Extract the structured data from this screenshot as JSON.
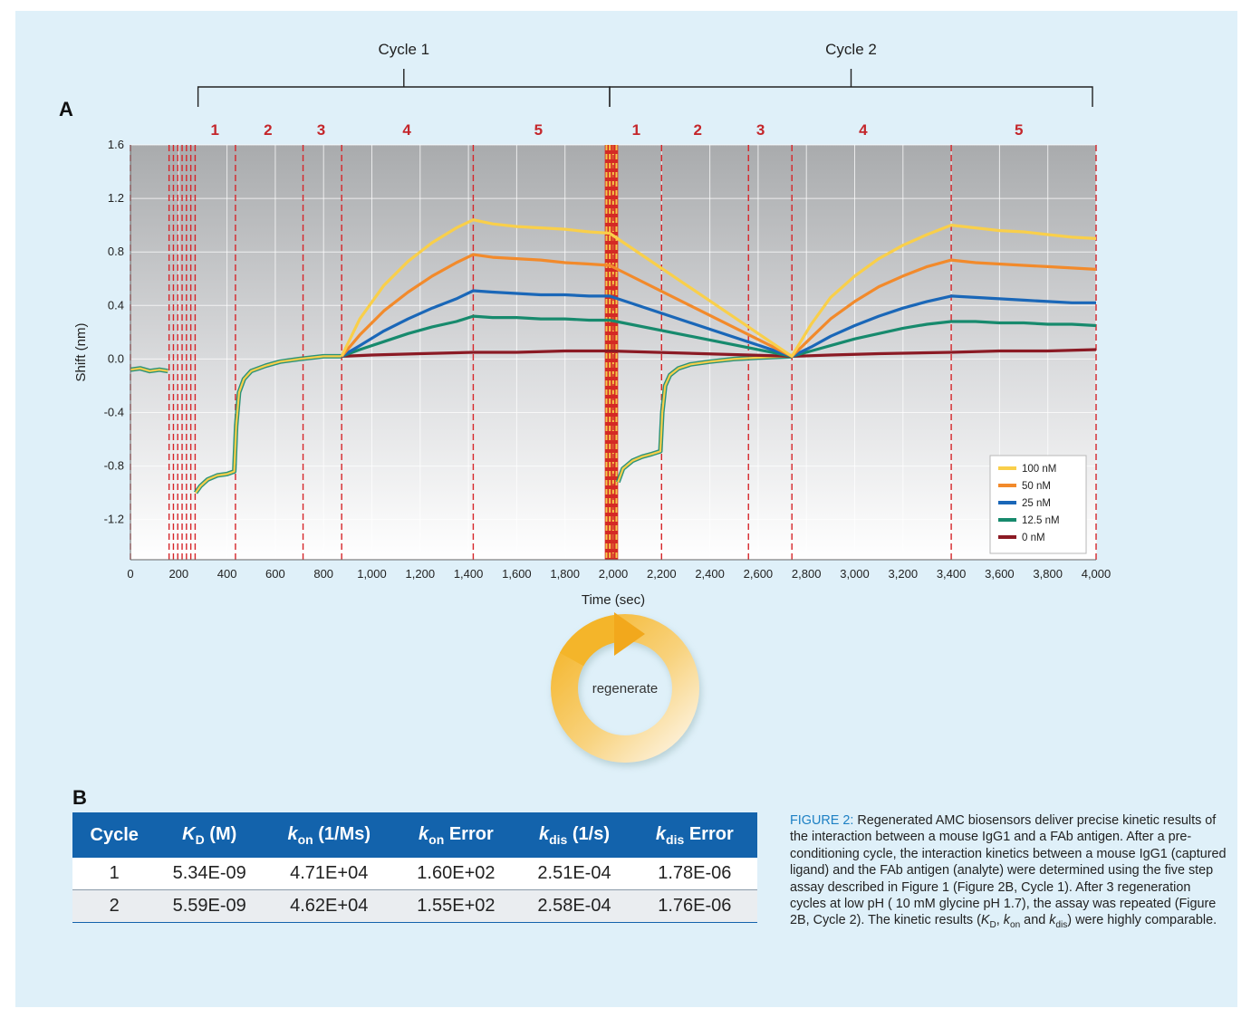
{
  "panel_labels": {
    "a": "A",
    "b": "B"
  },
  "chart_data": {
    "type": "line",
    "xlabel": "Time (sec)",
    "ylabel": "Shift (nm)",
    "xlim": [
      0,
      4000
    ],
    "ylim": [
      -1.5,
      1.6
    ],
    "x_ticks": [
      {
        "v": 0,
        "label": "0"
      },
      {
        "v": 200,
        "label": "200"
      },
      {
        "v": 400,
        "label": "400"
      },
      {
        "v": 600,
        "label": "600"
      },
      {
        "v": 800,
        "label": "800"
      },
      {
        "v": 1000,
        "label": "1,000"
      },
      {
        "v": 1200,
        "label": "1,200"
      },
      {
        "v": 1400,
        "label": "1,400"
      },
      {
        "v": 1600,
        "label": "1,600"
      },
      {
        "v": 1800,
        "label": "1,800"
      },
      {
        "v": 2000,
        "label": "2,000"
      },
      {
        "v": 2200,
        "label": "2,200"
      },
      {
        "v": 2400,
        "label": "2,400"
      },
      {
        "v": 2600,
        "label": "2,600"
      },
      {
        "v": 2800,
        "label": "2,800"
      },
      {
        "v": 3000,
        "label": "3,000"
      },
      {
        "v": 3200,
        "label": "3,200"
      },
      {
        "v": 3400,
        "label": "3,400"
      },
      {
        "v": 3600,
        "label": "3,600"
      },
      {
        "v": 3800,
        "label": "3,800"
      },
      {
        "v": 4000,
        "label": "4,000"
      }
    ],
    "y_ticks": [
      {
        "v": 1.6,
        "label": "1.6"
      },
      {
        "v": 1.2,
        "label": "1.2"
      },
      {
        "v": 0.8,
        "label": "0.8"
      },
      {
        "v": 0.4,
        "label": "0.4"
      },
      {
        "v": 0.0,
        "label": "0.0"
      },
      {
        "v": -0.4,
        "label": "-0.4"
      },
      {
        "v": -0.8,
        "label": "-0.8"
      },
      {
        "v": -1.2,
        "label": "-1.2"
      }
    ],
    "grid": true,
    "legend_position": "bottom-right",
    "cycles": [
      {
        "label": "Cycle 1",
        "start": 280,
        "end": 1985
      },
      {
        "label": "Cycle 2",
        "start": 1985,
        "end": 3985
      }
    ],
    "steps": [
      {
        "label": "1",
        "x": 350
      },
      {
        "label": "2",
        "x": 570
      },
      {
        "label": "3",
        "x": 790
      },
      {
        "label": "4",
        "x": 1145
      },
      {
        "label": "5",
        "x": 1690
      },
      {
        "label": "1",
        "x": 2095
      },
      {
        "label": "2",
        "x": 2350
      },
      {
        "label": "3",
        "x": 2610
      },
      {
        "label": "4",
        "x": 3035
      },
      {
        "label": "5",
        "x": 3680
      }
    ],
    "step_boundaries": [
      0,
      160,
      178,
      196,
      214,
      232,
      250,
      268,
      435,
      715,
      875,
      1420,
      2000,
      2200,
      2560,
      2740,
      3400,
      4000
    ],
    "regen_band": [
      1965,
      2020
    ],
    "baseline_segments": [
      {
        "x": [
          0,
          40,
          80,
          120,
          155
        ],
        "y": [
          -0.08,
          -0.07,
          -0.09,
          -0.08,
          -0.09
        ]
      },
      {
        "x": [
          270,
          290,
          320,
          360,
          400,
          430,
          438,
          450,
          470,
          500,
          560,
          620,
          700,
          800,
          875
        ],
        "y": [
          -1.0,
          -0.95,
          -0.9,
          -0.87,
          -0.86,
          -0.84,
          -0.5,
          -0.25,
          -0.15,
          -0.09,
          -0.05,
          -0.02,
          0.0,
          0.02,
          0.02
        ]
      },
      {
        "x": [
          2020,
          2040,
          2080,
          2120,
          2160,
          2195,
          2203,
          2215,
          2235,
          2270,
          2320,
          2400,
          2500,
          2600,
          2740
        ],
        "y": [
          -0.92,
          -0.82,
          -0.76,
          -0.73,
          -0.71,
          -0.69,
          -0.4,
          -0.2,
          -0.12,
          -0.07,
          -0.04,
          -0.02,
          0.0,
          0.01,
          0.02
        ]
      }
    ],
    "series": [
      {
        "name": "100 nM",
        "color": "#f9cf4a",
        "x": [
          875,
          950,
          1050,
          1150,
          1250,
          1350,
          1420,
          1500,
          1600,
          1700,
          1800,
          1900,
          1985,
          2740,
          2820,
          2900,
          3000,
          3100,
          3200,
          3300,
          3400,
          3500,
          3600,
          3700,
          3800,
          3900,
          4000
        ],
        "y": [
          0.02,
          0.3,
          0.55,
          0.73,
          0.87,
          0.98,
          1.04,
          1.01,
          0.99,
          0.98,
          0.97,
          0.95,
          0.94,
          0.02,
          0.26,
          0.46,
          0.62,
          0.75,
          0.85,
          0.93,
          1.0,
          0.98,
          0.96,
          0.95,
          0.93,
          0.91,
          0.9
        ]
      },
      {
        "name": "50 nM",
        "color": "#f28a2b",
        "x": [
          875,
          950,
          1050,
          1150,
          1250,
          1350,
          1420,
          1500,
          1600,
          1700,
          1800,
          1900,
          1985,
          2740,
          2820,
          2900,
          3000,
          3100,
          3200,
          3300,
          3400,
          3500,
          3600,
          3700,
          3800,
          3900,
          4000
        ],
        "y": [
          0.02,
          0.18,
          0.36,
          0.5,
          0.62,
          0.72,
          0.78,
          0.76,
          0.75,
          0.74,
          0.72,
          0.71,
          0.7,
          0.02,
          0.16,
          0.3,
          0.43,
          0.54,
          0.62,
          0.69,
          0.74,
          0.72,
          0.71,
          0.7,
          0.69,
          0.68,
          0.67
        ]
      },
      {
        "name": "25 nM",
        "color": "#1a67b8",
        "x": [
          875,
          950,
          1050,
          1150,
          1250,
          1350,
          1420,
          1500,
          1600,
          1700,
          1800,
          1900,
          1985,
          2740,
          2820,
          2900,
          3000,
          3100,
          3200,
          3300,
          3400,
          3500,
          3600,
          3700,
          3800,
          3900,
          4000
        ],
        "y": [
          0.02,
          0.1,
          0.21,
          0.3,
          0.38,
          0.45,
          0.51,
          0.5,
          0.49,
          0.48,
          0.48,
          0.47,
          0.47,
          0.02,
          0.09,
          0.17,
          0.25,
          0.32,
          0.38,
          0.43,
          0.47,
          0.46,
          0.45,
          0.44,
          0.43,
          0.42,
          0.42
        ]
      },
      {
        "name": "12.5 nM",
        "color": "#178a6d",
        "x": [
          875,
          950,
          1050,
          1150,
          1250,
          1350,
          1420,
          1500,
          1600,
          1700,
          1800,
          1900,
          1985,
          2740,
          2820,
          2900,
          3000,
          3100,
          3200,
          3300,
          3400,
          3500,
          3600,
          3700,
          3800,
          3900,
          4000
        ],
        "y": [
          0.02,
          0.07,
          0.13,
          0.19,
          0.24,
          0.28,
          0.32,
          0.31,
          0.31,
          0.3,
          0.3,
          0.29,
          0.29,
          0.02,
          0.06,
          0.1,
          0.15,
          0.19,
          0.23,
          0.26,
          0.28,
          0.28,
          0.27,
          0.27,
          0.26,
          0.26,
          0.25
        ]
      },
      {
        "name": "0 nM",
        "color": "#8b1a24",
        "x": [
          875,
          1000,
          1200,
          1420,
          1600,
          1800,
          1985,
          2740,
          2900,
          3100,
          3400,
          3600,
          3800,
          4000
        ],
        "y": [
          0.02,
          0.03,
          0.04,
          0.05,
          0.05,
          0.06,
          0.06,
          0.02,
          0.03,
          0.04,
          0.05,
          0.06,
          0.06,
          0.07
        ]
      }
    ]
  },
  "regenerate_label": "regenerate",
  "table": {
    "headers": [
      {
        "main": "Cycle",
        "sub": "",
        "post": ""
      },
      {
        "main": "K",
        "sub": "D",
        "post": " (M)"
      },
      {
        "main": "k",
        "sub": "on",
        "post": " (1/Ms)"
      },
      {
        "main": "k",
        "sub": "on",
        "post": " Error"
      },
      {
        "main": "k",
        "sub": "dis",
        "post": " (1/s)"
      },
      {
        "main": "k",
        "sub": "dis",
        "post": " Error"
      }
    ],
    "rows": [
      [
        "1",
        "5.34E-09",
        "4.71E+04",
        "1.60E+02",
        "2.51E-04",
        "1.78E-06"
      ],
      [
        "2",
        "5.59E-09",
        "4.62E+04",
        "1.55E+02",
        "2.58E-04",
        "1.76E-06"
      ]
    ]
  },
  "caption": {
    "fig_num": "FIGURE 2:",
    "p1": " Regenerated AMC biosensors deliver precise kinetic results of the interaction between a mouse IgG1 and a FAb antigen. After a pre-conditioning cycle, the interaction kinetics between a mouse IgG1 (captured ligand) and the FAb antigen (analyte) were determined using the five step assay described in Figure 1 (Figure 2B, Cycle 1). After 3 regeneration cycles at low pH ( 10 mM glycine pH 1.7), the assay was repeated (Figure 2B, Cycle 2). The kinetic results (",
    "kd_main": "K",
    "kd_sub": "D",
    "sep1": ", ",
    "kon_main": "k",
    "kon_sub": "on",
    "sep2": " and ",
    "kdis_main": "k",
    "kdis_sub": "dis",
    "p2": ") were highly comparable."
  }
}
